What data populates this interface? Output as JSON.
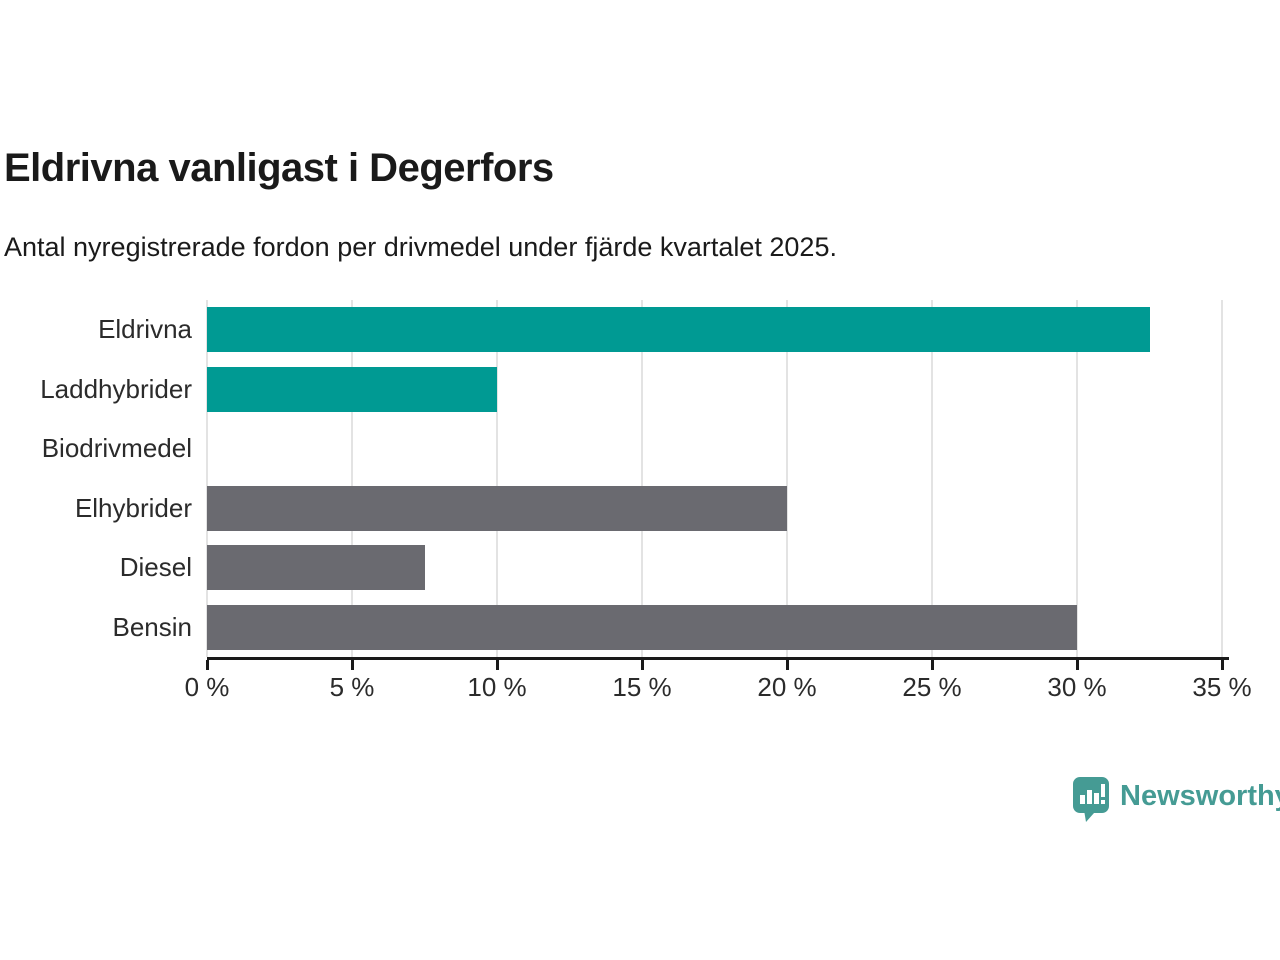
{
  "header": {
    "title": "Eldrivna vanligast i Degerfors",
    "subtitle": "Antal nyregistrerade fordon per drivmedel under fjärde kvartalet 2025."
  },
  "chart_data": {
    "type": "bar",
    "orientation": "horizontal",
    "title": "Eldrivna vanligast i Degerfors",
    "subtitle": "Antal nyregistrerade fordon per drivmedel under fjärde kvartalet 2025.",
    "categories": [
      "Eldrivna",
      "Laddhybrider",
      "Biodrivmedel",
      "Elhybrider",
      "Diesel",
      "Bensin"
    ],
    "values": [
      32.5,
      10,
      0,
      20,
      7.5,
      30
    ],
    "bar_colors": [
      "#009a93",
      "#009a93",
      "#009a93",
      "#6a6a70",
      "#6a6a70",
      "#6a6a70"
    ],
    "xlim": [
      0,
      35
    ],
    "x_ticks": [
      0,
      5,
      10,
      15,
      20,
      25,
      30,
      35
    ],
    "x_tick_labels": [
      "0 %",
      "5 %",
      "10 %",
      "15 %",
      "20 %",
      "25 %",
      "30 %",
      "35 %"
    ],
    "xlabel": "",
    "ylabel": "",
    "grid": "vertical-gridlines",
    "legend": "none"
  },
  "colors": {
    "teal": "#009a93",
    "gray": "#6a6a70",
    "gridline": "#e3e3e3",
    "axis": "#1a1a1a",
    "text": "#2b2b2b",
    "brand": "#459b94"
  },
  "footer": {
    "brand_label": "Newsworthy"
  }
}
